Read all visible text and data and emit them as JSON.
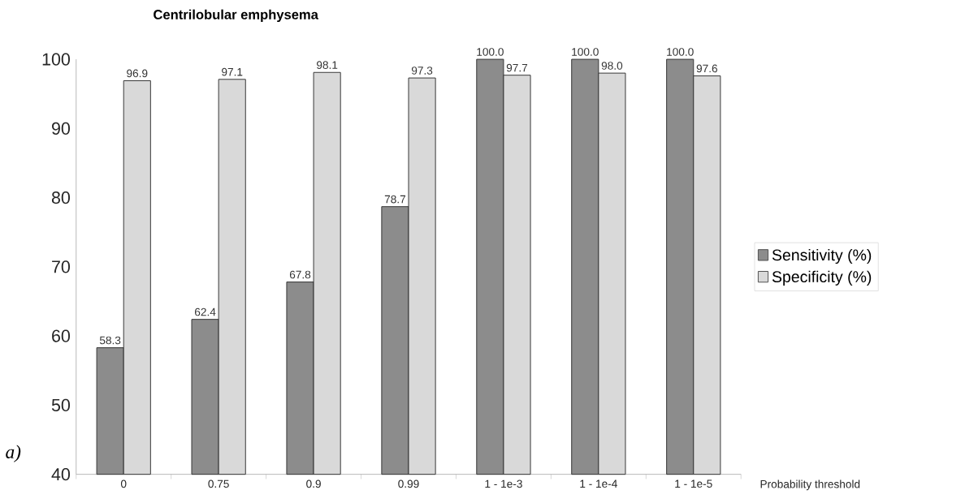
{
  "chart_data": {
    "type": "bar",
    "title": "Centrilobular emphysema",
    "xlabel": "Probability threshold",
    "annotations": [
      "a)"
    ],
    "categories": [
      "0",
      "0.75",
      "0.9",
      "0.99",
      "1 - 1e-3",
      "1 - 1e-4",
      "1 - 1e-5"
    ],
    "series": [
      {
        "name": "Sensitivity (%)",
        "color": "#8c8c8c",
        "values": [
          58.3,
          62.4,
          67.8,
          78.7,
          100.0,
          100.0,
          100.0
        ],
        "value_labels": [
          "58.3",
          "62.4",
          "67.8",
          "78.7",
          "100.0",
          "100.0",
          "100.0"
        ]
      },
      {
        "name": "Specificity (%)",
        "color": "#d9d9d9",
        "values": [
          96.9,
          97.1,
          98.1,
          97.3,
          97.7,
          98.0,
          97.6
        ],
        "value_labels": [
          "96.9",
          "97.1",
          "98.1",
          "97.3",
          "97.7",
          "98.0",
          "97.6"
        ]
      }
    ],
    "ylim": [
      40,
      100
    ],
    "yticks": [
      40,
      50,
      60,
      70,
      80,
      90,
      100
    ],
    "legend": "right",
    "grid": false
  }
}
